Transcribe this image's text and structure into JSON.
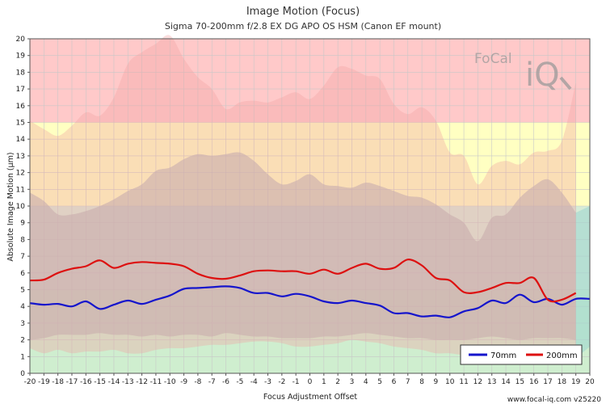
{
  "chart_data": {
    "type": "line",
    "title": "Image Motion (Focus)",
    "subtitle": "Sigma 70-200mm f/2.8 EX DG APO OS HSM (Canon EF mount)",
    "xlabel": "Focus Adjustment Offset",
    "ylabel": "Absolute Image Motion (μm)",
    "xlim": [
      -20,
      20
    ],
    "ylim": [
      0,
      20
    ],
    "xticks": [
      -20,
      -19,
      -18,
      -17,
      -16,
      -15,
      -14,
      -13,
      -12,
      -11,
      -10,
      -9,
      -8,
      -7,
      -6,
      -5,
      -4,
      -3,
      -2,
      -1,
      0,
      1,
      2,
      3,
      4,
      5,
      6,
      7,
      8,
      9,
      10,
      11,
      12,
      13,
      14,
      15,
      16,
      17,
      18,
      19,
      20
    ],
    "yticks": [
      0,
      1,
      2,
      3,
      4,
      5,
      6,
      7,
      8,
      9,
      10,
      11,
      12,
      13,
      14,
      15,
      16,
      17,
      18,
      19,
      20
    ],
    "zones": [
      {
        "from": 0,
        "to": 5,
        "color": "#cfeecf"
      },
      {
        "from": 5,
        "to": 10,
        "color": "#d7ecd7"
      },
      {
        "from": 10,
        "to": 15,
        "color": "#ffffc2"
      },
      {
        "from": 15,
        "to": 20,
        "color": "#ffc9c9"
      }
    ],
    "series": [
      {
        "name": "70mm",
        "color": "#1515cc",
        "x": [
          -20,
          -19,
          -18,
          -17,
          -16,
          -15,
          -14,
          -13,
          -12,
          -11,
          -10,
          -9,
          -8,
          -7,
          -6,
          -5,
          -4,
          -3,
          -2,
          -1,
          0,
          1,
          2,
          3,
          4,
          5,
          6,
          7,
          8,
          9,
          10,
          11,
          12,
          13,
          14,
          15,
          16,
          17,
          18,
          19,
          20
        ],
        "values": [
          4.2,
          4.1,
          4.15,
          4.0,
          4.3,
          3.85,
          4.1,
          4.35,
          4.15,
          4.4,
          4.65,
          5.05,
          5.1,
          5.15,
          5.2,
          5.1,
          4.8,
          4.8,
          4.6,
          4.75,
          4.6,
          4.3,
          4.2,
          4.35,
          4.2,
          4.05,
          3.6,
          3.6,
          3.4,
          3.45,
          3.35,
          3.7,
          3.9,
          4.35,
          4.2,
          4.7,
          4.25,
          4.45,
          4.1,
          4.45,
          4.45
        ]
      },
      {
        "name": "200mm",
        "color": "#dd1111",
        "x": [
          -20,
          -19,
          -18,
          -17,
          -16,
          -15,
          -14,
          -13,
          -12,
          -11,
          -10,
          -9,
          -8,
          -7,
          -6,
          -5,
          -4,
          -3,
          -2,
          -1,
          0,
          1,
          2,
          3,
          4,
          5,
          6,
          7,
          8,
          9,
          10,
          11,
          12,
          13,
          14,
          15,
          16,
          17,
          18,
          19
        ],
        "values": [
          5.55,
          5.6,
          6.0,
          6.25,
          6.4,
          6.75,
          6.3,
          6.55,
          6.65,
          6.6,
          6.55,
          6.4,
          5.95,
          5.7,
          5.65,
          5.85,
          6.1,
          6.15,
          6.1,
          6.1,
          5.95,
          6.2,
          5.95,
          6.3,
          6.55,
          6.25,
          6.3,
          6.8,
          6.45,
          5.7,
          5.55,
          4.85,
          4.85,
          5.1,
          5.4,
          5.4,
          5.7,
          4.4,
          4.4,
          4.8
        ]
      }
    ],
    "bands": [
      {
        "color": "#b4b4b4",
        "opacity": 0.6,
        "x": [
          -20,
          -19,
          -18,
          -17,
          -16,
          -15,
          -14,
          -13,
          -12,
          -11,
          -10,
          -9,
          -8,
          -7,
          -6,
          -5,
          -4,
          -3,
          -2,
          -1,
          0,
          1,
          2,
          3,
          4,
          5,
          6,
          7,
          8,
          9,
          10,
          11,
          12,
          13,
          14,
          15,
          16,
          17,
          18,
          19
        ],
        "upper": [
          10.8,
          10.3,
          9.5,
          9.5,
          9.7,
          10.0,
          10.4,
          10.9,
          11.3,
          12.1,
          12.3,
          12.8,
          13.1,
          13.0,
          13.1,
          13.2,
          12.7,
          11.9,
          11.3,
          11.5,
          11.9,
          11.3,
          11.2,
          11.1,
          11.4,
          11.2,
          10.9,
          10.6,
          10.5,
          10.1,
          9.5,
          9.0,
          7.9,
          9.3,
          9.5,
          10.5,
          11.2,
          11.6,
          10.8,
          9.6
        ],
        "lower": [
          2.0,
          2.1,
          2.3,
          2.3,
          2.3,
          2.4,
          2.3,
          2.3,
          2.2,
          2.3,
          2.2,
          2.3,
          2.3,
          2.2,
          2.4,
          2.3,
          2.2,
          2.2,
          2.1,
          2.1,
          2.1,
          2.2,
          2.2,
          2.3,
          2.4,
          2.3,
          2.2,
          2.1,
          2.1,
          2.0,
          2.0,
          2.0,
          2.1,
          2.2,
          2.1,
          2.0,
          2.1,
          2.1,
          2.1,
          2.0
        ]
      },
      {
        "color": "#f0a0a0",
        "opacity": 0.35,
        "x": [
          -20,
          -19,
          -18,
          -17,
          -16,
          -15,
          -14,
          -13,
          -12,
          -11,
          -10,
          -9,
          -8,
          -7,
          -6,
          -5,
          -4,
          -3,
          -2,
          -1,
          0,
          1,
          2,
          3,
          4,
          5,
          6,
          7,
          8,
          9,
          10,
          11,
          12,
          13,
          14,
          15,
          16,
          17,
          18,
          19
        ],
        "upper": [
          15.1,
          14.6,
          14.2,
          14.8,
          15.6,
          15.4,
          16.5,
          18.5,
          19.2,
          19.7,
          20.2,
          18.8,
          17.7,
          17.0,
          15.8,
          16.2,
          16.3,
          16.2,
          16.5,
          16.8,
          16.4,
          17.2,
          18.3,
          18.2,
          17.8,
          17.6,
          16.1,
          15.5,
          15.9,
          15.1,
          13.2,
          13.0,
          11.3,
          12.4,
          12.7,
          12.5,
          13.2,
          13.3,
          13.9,
          17.4
        ],
        "lower": [
          1.5,
          1.2,
          1.4,
          1.2,
          1.3,
          1.3,
          1.4,
          1.2,
          1.2,
          1.4,
          1.5,
          1.5,
          1.6,
          1.7,
          1.7,
          1.8,
          1.9,
          1.9,
          1.8,
          1.6,
          1.6,
          1.7,
          1.8,
          2.0,
          1.9,
          1.8,
          1.6,
          1.5,
          1.4,
          1.2,
          1.2,
          1.1,
          1.2,
          1.2,
          1.1,
          1.0,
          1.1,
          1.3,
          1.2,
          1.0
        ]
      },
      {
        "color": "#9ad6cf",
        "opacity": 0.55,
        "x": [
          19,
          20
        ],
        "upper": [
          9.6,
          10.0
        ],
        "lower": [
          0.9,
          1.6
        ]
      }
    ],
    "legend": {
      "position": "bottom-right",
      "entries": [
        "70mm",
        "200mm"
      ]
    },
    "grid": true
  },
  "logo": {
    "line1": "FoCal",
    "line2": "iQ"
  },
  "credit": "www.focal-iq.com  v25220"
}
